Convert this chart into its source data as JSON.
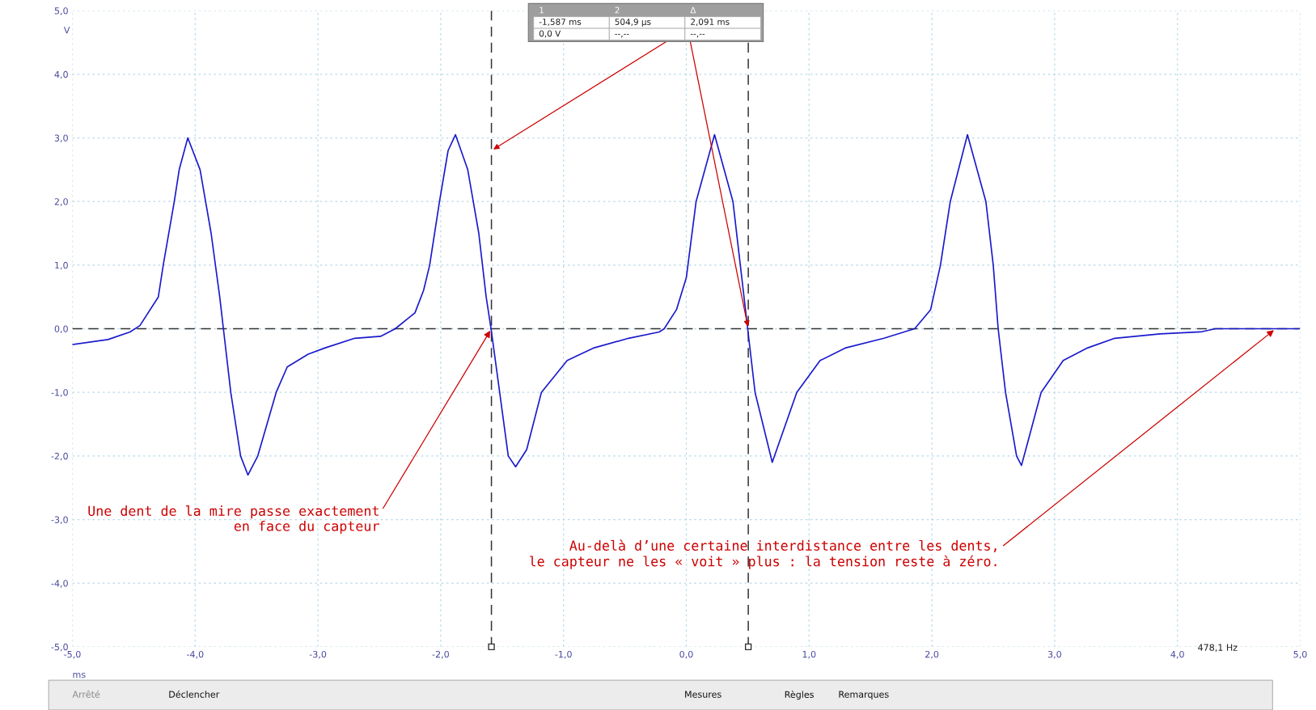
{
  "chart_data": {
    "type": "line",
    "xlabel": "ms",
    "ylabel": "V",
    "xlim": [
      -5,
      5
    ],
    "ylim": [
      -5,
      5
    ],
    "xticks": [
      {
        "value": -5,
        "label": "-5,0"
      },
      {
        "value": -4,
        "label": "-4,0"
      },
      {
        "value": -3,
        "label": "-3,0"
      },
      {
        "value": -2,
        "label": "-2,0"
      },
      {
        "value": -1,
        "label": "-1,0"
      },
      {
        "value": 0,
        "label": "0,0"
      },
      {
        "value": 1,
        "label": "1,0"
      },
      {
        "value": 2,
        "label": "2,0"
      },
      {
        "value": 3,
        "label": "3,0"
      },
      {
        "value": 4,
        "label": "4,0"
      },
      {
        "value": 5,
        "label": "5,0"
      }
    ],
    "yticks": [
      {
        "value": -5,
        "label": "-5,0"
      },
      {
        "value": -4,
        "label": "-4,0"
      },
      {
        "value": -3,
        "label": "-3,0"
      },
      {
        "value": -2,
        "label": "-2,0"
      },
      {
        "value": -1,
        "label": "-1,0"
      },
      {
        "value": 0,
        "label": "0,0"
      },
      {
        "value": 1,
        "label": "1,0"
      },
      {
        "value": 2,
        "label": "2,0"
      },
      {
        "value": 3,
        "label": "3,0"
      },
      {
        "value": 4,
        "label": "4,0"
      },
      {
        "value": 5,
        "label": "5,0"
      }
    ],
    "grid": true,
    "legend": false,
    "marker": "none",
    "line_style": "solid",
    "series": [
      {
        "color": "#1a1acc",
        "x": [
          -5.0,
          -4.71,
          -4.53,
          -4.45,
          -4.3,
          -4.26,
          -4.17,
          -4.13,
          -4.06,
          -3.96,
          -3.87,
          -3.8,
          -3.77,
          -3.71,
          -3.63,
          -3.57,
          -3.49,
          -3.34,
          -3.25,
          -3.08,
          -2.94,
          -2.7,
          -2.49,
          -2.37,
          -2.21,
          -2.14,
          -2.09,
          -2.01,
          -1.94,
          -1.88,
          -1.78,
          -1.69,
          -1.63,
          -1.59,
          -1.52,
          -1.45,
          -1.39,
          -1.3,
          -1.18,
          -0.97,
          -0.75,
          -0.47,
          -0.22,
          -0.18,
          -0.08,
          0.0,
          0.08,
          0.23,
          0.38,
          0.44,
          0.5,
          0.56,
          0.7,
          0.9,
          1.09,
          1.3,
          1.61,
          1.86,
          1.99,
          2.07,
          2.15,
          2.29,
          2.44,
          2.5,
          2.54,
          2.6,
          2.69,
          2.73,
          2.89,
          3.07,
          3.27,
          3.49,
          3.86,
          4.19,
          4.31,
          4.99
        ],
        "values": [
          -0.25,
          -0.17,
          -0.05,
          0.05,
          0.5,
          1.0,
          2.0,
          2.5,
          3.0,
          2.5,
          1.5,
          0.5,
          0.0,
          -1.0,
          -2.0,
          -2.3,
          -2.0,
          -1.0,
          -0.6,
          -0.4,
          -0.3,
          -0.15,
          -0.12,
          0.0,
          0.25,
          0.6,
          1.0,
          2.0,
          2.8,
          3.05,
          2.5,
          1.5,
          0.5,
          0.0,
          -1.0,
          -2.0,
          -2.17,
          -1.9,
          -1.0,
          -0.5,
          -0.3,
          -0.15,
          -0.05,
          0.0,
          0.3,
          0.8,
          2.0,
          3.05,
          2.0,
          1.0,
          0.0,
          -1.0,
          -2.1,
          -1.0,
          -0.5,
          -0.3,
          -0.15,
          0.0,
          0.3,
          1.0,
          2.0,
          3.05,
          2.0,
          1.0,
          0.0,
          -1.0,
          -2.0,
          -2.15,
          -1.0,
          -0.5,
          -0.3,
          -0.15,
          -0.08,
          -0.05,
          0.0,
          0.0
        ]
      }
    ],
    "ref_lines": [
      {
        "axis": "y",
        "value": 0,
        "color": "#333333",
        "line_style": "dashed"
      },
      {
        "axis": "x",
        "value": -1.587,
        "color": "#333333",
        "line_style": "dashed"
      },
      {
        "axis": "x",
        "value": 0.5049,
        "color": "#333333",
        "line_style": "dashed"
      }
    ],
    "annotations": [
      {
        "text": "Une dent de la mire passe exactement\nen face du capteur",
        "x": -1.587,
        "y": 0
      },
      {
        "text": "Au-delà d’une certaine interdistance entre les dents,\nle capteur ne les « voit » plus : la tension reste à zéro.",
        "x": 4.8,
        "y": 0
      },
      "1",
      "2",
      "Δ",
      "-1,587 ms",
      "504,9 µs",
      {
        "text": "2,091 ms",
        "x": -1.587,
        "y": 2.8
      },
      "0,0 V",
      "--,--",
      {
        "text": "--,--",
        "x": 0.5049,
        "y": 0
      },
      "Arrêté",
      "Déclencher",
      "Mesures",
      "Règles",
      "Remarques",
      "478,1 Hz"
    ]
  }
}
